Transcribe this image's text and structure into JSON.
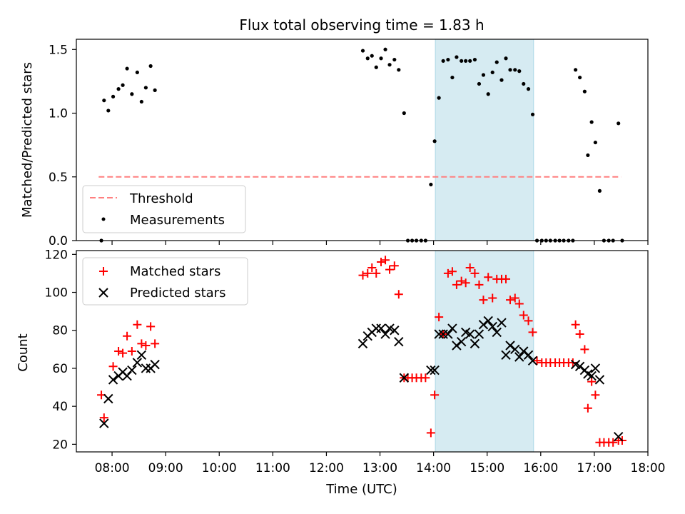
{
  "chart_data": [
    {
      "type": "scatter",
      "title": "Flux total observing time = 1.83 h",
      "ylabel": "Matched/Predicted stars",
      "xlabel": "",
      "x_unit": "hours UTC",
      "xlim": [
        "07:20",
        "18:00"
      ],
      "ylim": [
        0,
        1.58
      ],
      "yticks": [
        0.0,
        0.5,
        1.0,
        1.5
      ],
      "ytick_labels": [
        "0.0",
        "0.5",
        "1.0",
        "1.5"
      ],
      "grid": false,
      "legend_position": "lower-left",
      "highlight_interval": {
        "start": "14:02",
        "end": "15:52",
        "color": "#add8e6"
      },
      "threshold": {
        "name": "Threshold",
        "value": 0.5,
        "x_start": "07:45",
        "x_end": "17:30",
        "color": "#ff7f7f",
        "style": "dashed"
      },
      "series": [
        {
          "name": "Measurements",
          "marker": "dot",
          "color": "#000000",
          "points": [
            [
              7.8,
              0.0
            ],
            [
              7.85,
              1.1
            ],
            [
              7.93,
              1.02
            ],
            [
              8.02,
              1.13
            ],
            [
              8.12,
              1.19
            ],
            [
              8.2,
              1.22
            ],
            [
              8.28,
              1.35
            ],
            [
              8.37,
              1.15
            ],
            [
              8.47,
              1.32
            ],
            [
              8.55,
              1.09
            ],
            [
              8.63,
              1.2
            ],
            [
              8.72,
              1.37
            ],
            [
              8.8,
              1.18
            ],
            [
              12.68,
              1.49
            ],
            [
              12.77,
              1.43
            ],
            [
              12.85,
              1.45
            ],
            [
              12.93,
              1.36
            ],
            [
              13.02,
              1.43
            ],
            [
              13.1,
              1.5
            ],
            [
              13.18,
              1.38
            ],
            [
              13.27,
              1.42
            ],
            [
              13.35,
              1.34
            ],
            [
              13.45,
              1.0
            ],
            [
              13.52,
              0.0
            ],
            [
              13.6,
              0.0
            ],
            [
              13.68,
              0.0
            ],
            [
              13.77,
              0.0
            ],
            [
              13.85,
              0.0
            ],
            [
              13.95,
              0.44
            ],
            [
              14.02,
              0.78
            ],
            [
              14.1,
              1.12
            ],
            [
              14.18,
              1.41
            ],
            [
              14.27,
              1.42
            ],
            [
              14.35,
              1.28
            ],
            [
              14.43,
              1.44
            ],
            [
              14.52,
              1.41
            ],
            [
              14.6,
              1.41
            ],
            [
              14.68,
              1.41
            ],
            [
              14.77,
              1.42
            ],
            [
              14.85,
              1.23
            ],
            [
              14.93,
              1.3
            ],
            [
              15.02,
              1.15
            ],
            [
              15.1,
              1.32
            ],
            [
              15.18,
              1.4
            ],
            [
              15.27,
              1.26
            ],
            [
              15.35,
              1.43
            ],
            [
              15.43,
              1.34
            ],
            [
              15.52,
              1.34
            ],
            [
              15.6,
              1.33
            ],
            [
              15.68,
              1.23
            ],
            [
              15.77,
              1.19
            ],
            [
              15.85,
              0.99
            ],
            [
              15.93,
              0.0
            ],
            [
              16.02,
              0.0
            ],
            [
              16.1,
              0.0
            ],
            [
              16.18,
              0.0
            ],
            [
              16.27,
              0.0
            ],
            [
              16.35,
              0.0
            ],
            [
              16.43,
              0.0
            ],
            [
              16.52,
              0.0
            ],
            [
              16.6,
              0.0
            ],
            [
              16.65,
              1.34
            ],
            [
              16.73,
              1.28
            ],
            [
              16.82,
              1.17
            ],
            [
              16.88,
              0.67
            ],
            [
              16.95,
              0.93
            ],
            [
              17.02,
              0.77
            ],
            [
              17.1,
              0.39
            ],
            [
              17.18,
              0.0
            ],
            [
              17.27,
              0.0
            ],
            [
              17.35,
              0.0
            ],
            [
              17.45,
              0.92
            ],
            [
              17.52,
              0.0
            ]
          ]
        }
      ]
    },
    {
      "type": "scatter",
      "title": "",
      "ylabel": "Count",
      "xlabel": "Time (UTC)",
      "x_unit": "hours UTC",
      "xlim": [
        "07:20",
        "18:00"
      ],
      "ylim": [
        16,
        122
      ],
      "yticks": [
        20,
        40,
        60,
        80,
        100,
        120
      ],
      "ytick_labels": [
        "20",
        "40",
        "60",
        "80",
        "100",
        "120"
      ],
      "xticks": [
        8,
        9,
        10,
        11,
        12,
        13,
        14,
        15,
        16,
        17,
        18
      ],
      "xtick_labels": [
        "08:00",
        "09:00",
        "10:00",
        "11:00",
        "12:00",
        "13:00",
        "14:00",
        "15:00",
        "16:00",
        "17:00",
        "18:00"
      ],
      "grid": false,
      "legend_position": "upper-left",
      "highlight_interval": {
        "start": "14:02",
        "end": "15:52",
        "color": "#add8e6"
      },
      "series": [
        {
          "name": "Matched stars",
          "marker": "plus",
          "color": "#ff0000",
          "points": [
            [
              7.8,
              46
            ],
            [
              7.85,
              34
            ],
            [
              8.02,
              61
            ],
            [
              8.12,
              69
            ],
            [
              8.2,
              68
            ],
            [
              8.28,
              77
            ],
            [
              8.37,
              69
            ],
            [
              8.47,
              83
            ],
            [
              8.55,
              73
            ],
            [
              8.63,
              72
            ],
            [
              8.72,
              82
            ],
            [
              8.8,
              73
            ],
            [
              12.68,
              109
            ],
            [
              12.77,
              110
            ],
            [
              12.85,
              113
            ],
            [
              12.93,
              110
            ],
            [
              13.02,
              116
            ],
            [
              13.1,
              117
            ],
            [
              13.18,
              112
            ],
            [
              13.27,
              114
            ],
            [
              13.35,
              99
            ],
            [
              13.45,
              55
            ],
            [
              13.52,
              55
            ],
            [
              13.6,
              55
            ],
            [
              13.68,
              55
            ],
            [
              13.77,
              55
            ],
            [
              13.85,
              55
            ],
            [
              13.95,
              26
            ],
            [
              14.02,
              46
            ],
            [
              14.1,
              87
            ],
            [
              14.18,
              78
            ],
            [
              14.27,
              110
            ],
            [
              14.35,
              111
            ],
            [
              14.43,
              104
            ],
            [
              14.52,
              106
            ],
            [
              14.6,
              105
            ],
            [
              14.68,
              113
            ],
            [
              14.77,
              110
            ],
            [
              14.85,
              104
            ],
            [
              14.93,
              96
            ],
            [
              15.02,
              108
            ],
            [
              15.1,
              97
            ],
            [
              15.18,
              107
            ],
            [
              15.27,
              107
            ],
            [
              15.35,
              107
            ],
            [
              15.43,
              96
            ],
            [
              15.52,
              97
            ],
            [
              15.6,
              94
            ],
            [
              15.68,
              88
            ],
            [
              15.77,
              85
            ],
            [
              15.85,
              79
            ],
            [
              15.93,
              64
            ],
            [
              16.02,
              63
            ],
            [
              16.1,
              63
            ],
            [
              16.18,
              63
            ],
            [
              16.27,
              63
            ],
            [
              16.35,
              63
            ],
            [
              16.43,
              63
            ],
            [
              16.52,
              63
            ],
            [
              16.6,
              63
            ],
            [
              16.65,
              83
            ],
            [
              16.73,
              78
            ],
            [
              16.82,
              70
            ],
            [
              16.88,
              39
            ],
            [
              16.95,
              53
            ],
            [
              17.02,
              46
            ],
            [
              17.1,
              21
            ],
            [
              17.18,
              21
            ],
            [
              17.27,
              21
            ],
            [
              17.35,
              21
            ],
            [
              17.45,
              22
            ],
            [
              17.52,
              22
            ]
          ]
        },
        {
          "name": "Predicted stars",
          "marker": "x",
          "color": "#000000",
          "points": [
            [
              7.85,
              31
            ],
            [
              7.93,
              44
            ],
            [
              8.02,
              54
            ],
            [
              8.12,
              56
            ],
            [
              8.2,
              58
            ],
            [
              8.28,
              56
            ],
            [
              8.37,
              59
            ],
            [
              8.47,
              63
            ],
            [
              8.55,
              67
            ],
            [
              8.63,
              60
            ],
            [
              8.72,
              60
            ],
            [
              8.8,
              62
            ],
            [
              12.68,
              73
            ],
            [
              12.77,
              77
            ],
            [
              12.85,
              79
            ],
            [
              12.93,
              81
            ],
            [
              13.02,
              81
            ],
            [
              13.1,
              78
            ],
            [
              13.18,
              81
            ],
            [
              13.27,
              80
            ],
            [
              13.35,
              74
            ],
            [
              13.45,
              55
            ],
            [
              13.95,
              59
            ],
            [
              14.02,
              59
            ],
            [
              14.1,
              78
            ],
            [
              14.18,
              78
            ],
            [
              14.27,
              78
            ],
            [
              14.35,
              81
            ],
            [
              14.43,
              72
            ],
            [
              14.52,
              74
            ],
            [
              14.6,
              79
            ],
            [
              14.68,
              78
            ],
            [
              14.77,
              73
            ],
            [
              14.85,
              78
            ],
            [
              14.93,
              83
            ],
            [
              15.02,
              85
            ],
            [
              15.1,
              82
            ],
            [
              15.18,
              79
            ],
            [
              15.27,
              84
            ],
            [
              15.35,
              67
            ],
            [
              15.43,
              72
            ],
            [
              15.52,
              70
            ],
            [
              15.6,
              66
            ],
            [
              15.68,
              69
            ],
            [
              15.77,
              67
            ],
            [
              15.85,
              64
            ],
            [
              16.65,
              62
            ],
            [
              16.73,
              61
            ],
            [
              16.82,
              59
            ],
            [
              16.88,
              57
            ],
            [
              16.95,
              56
            ],
            [
              17.02,
              60
            ],
            [
              17.1,
              54
            ],
            [
              17.45,
              24
            ]
          ]
        }
      ]
    }
  ]
}
